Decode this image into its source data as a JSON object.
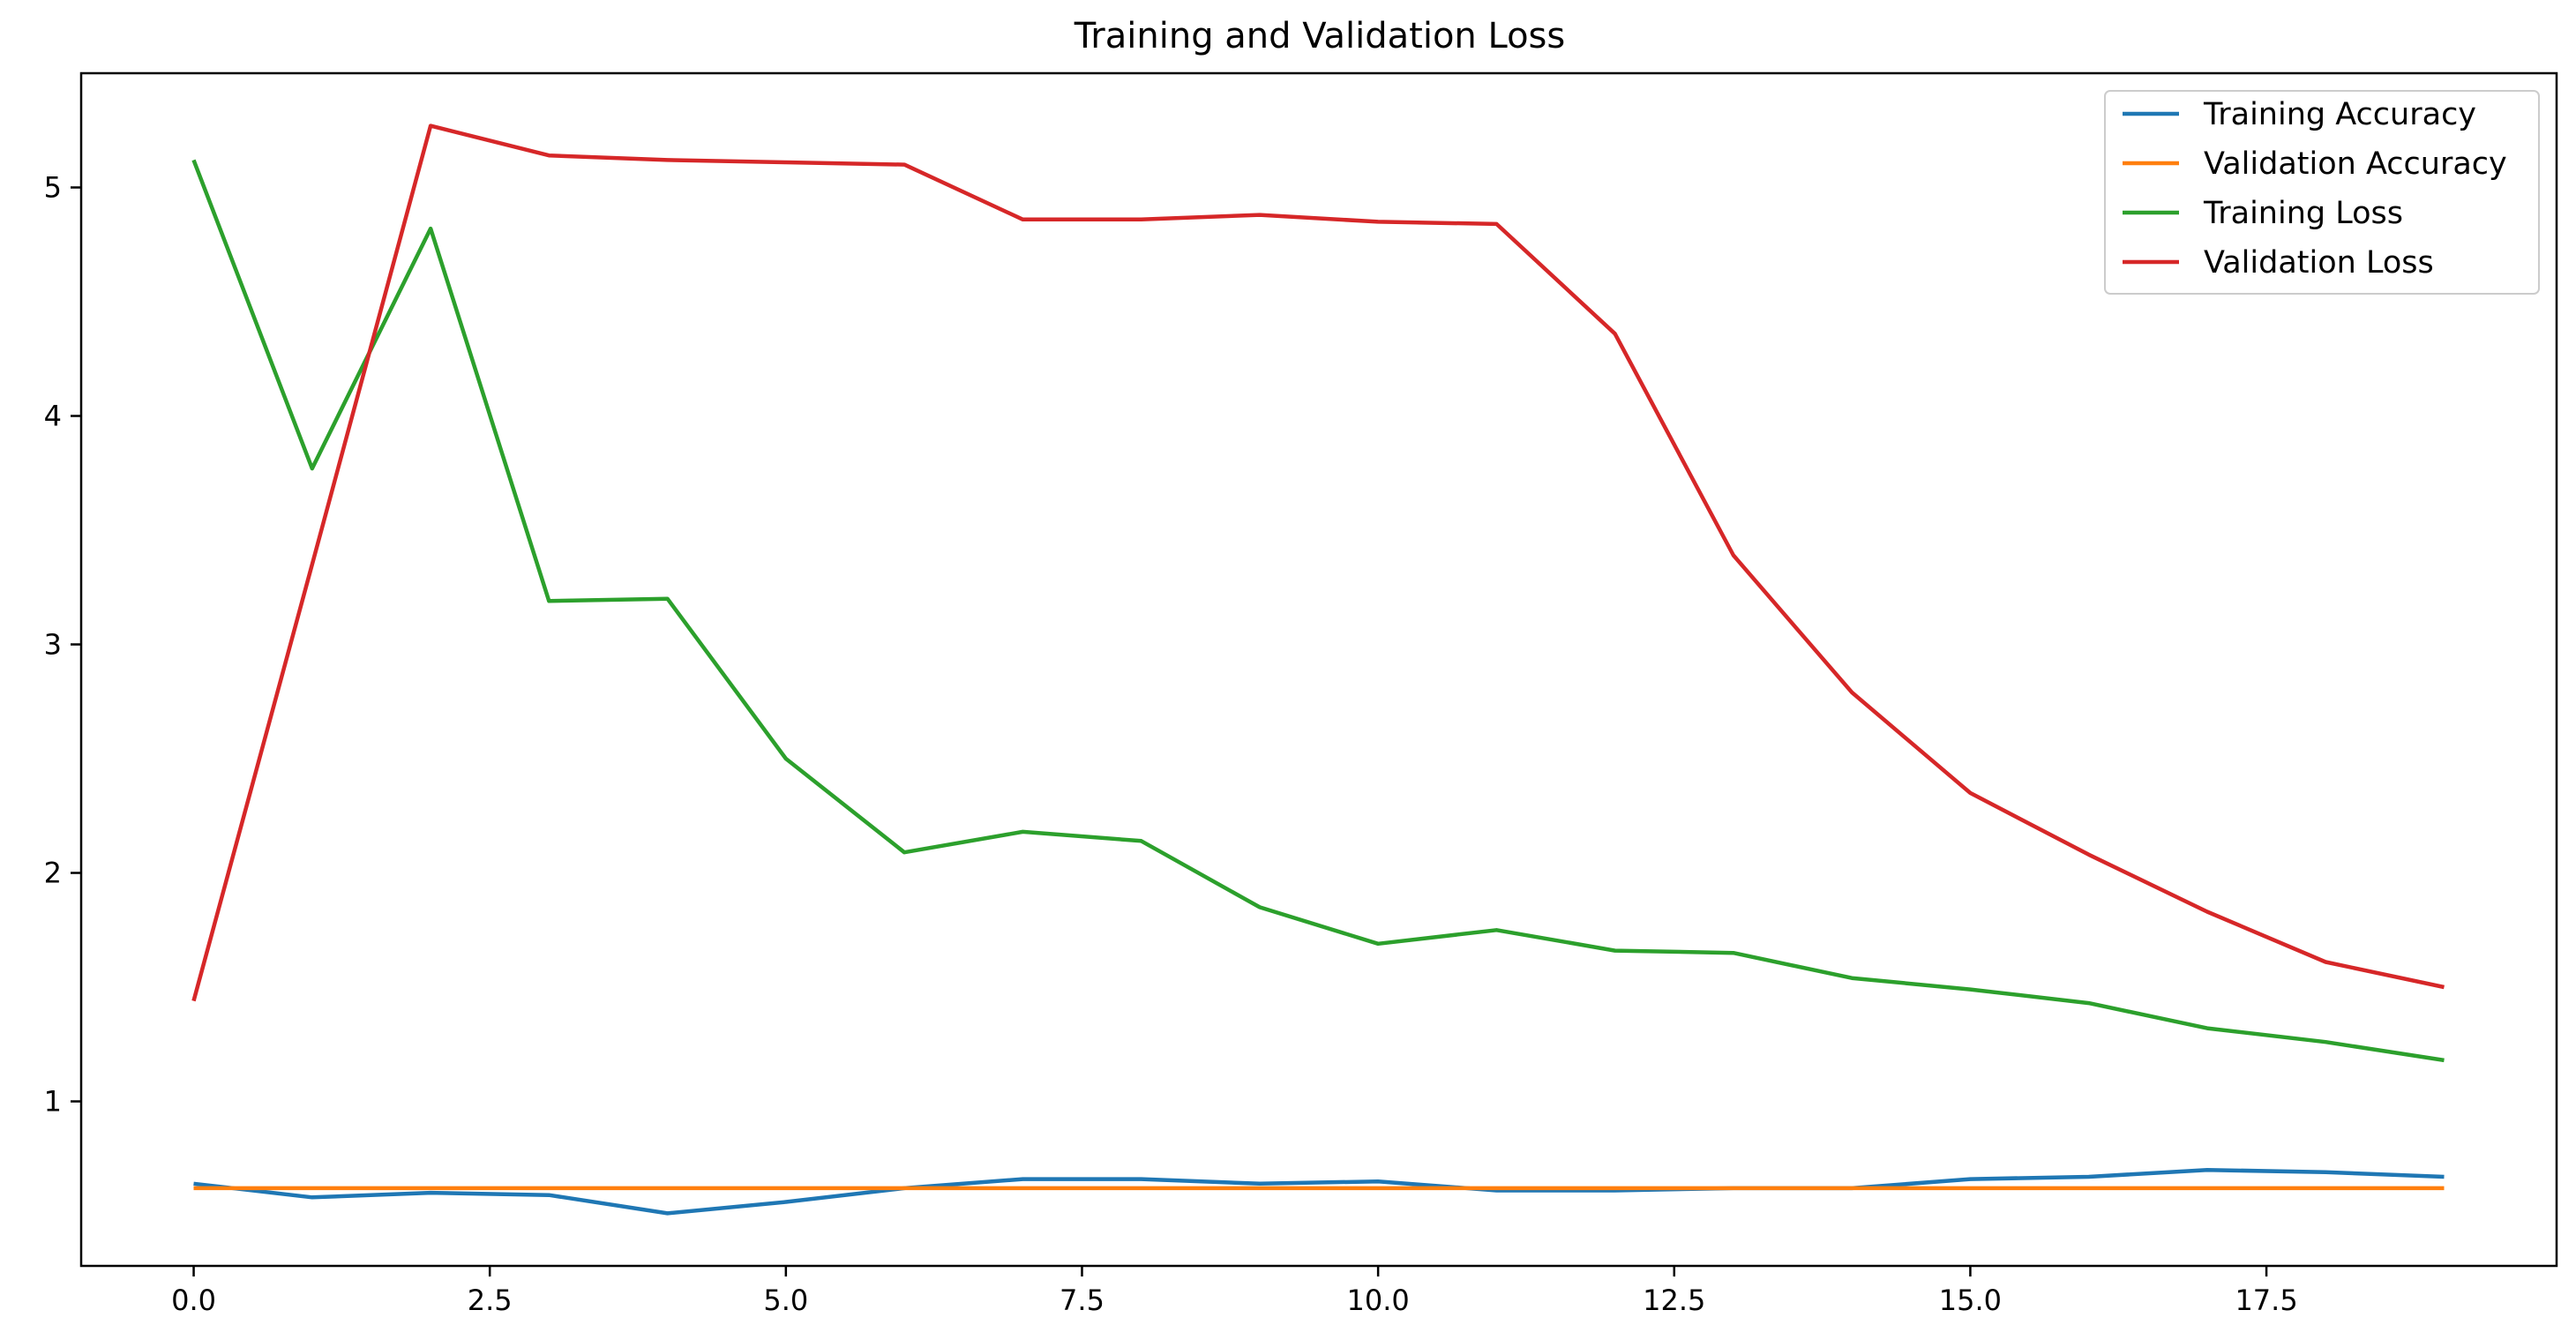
{
  "chart_data": {
    "type": "line",
    "title": "Training and Validation Loss",
    "xlabel": "",
    "ylabel": "",
    "xlim": [
      -0.95,
      19.95
    ],
    "ylim": [
      0.28,
      5.5
    ],
    "xticks": [
      0.0,
      2.5,
      5.0,
      7.5,
      10.0,
      12.5,
      15.0,
      17.5
    ],
    "xtick_labels": [
      "0.0",
      "2.5",
      "5.0",
      "7.5",
      "10.0",
      "12.5",
      "15.0",
      "17.5"
    ],
    "yticks": [
      1,
      2,
      3,
      4,
      5
    ],
    "ytick_labels": [
      "1",
      "2",
      "3",
      "4",
      "5"
    ],
    "grid": false,
    "legend_position": "top-right",
    "x": [
      0,
      1,
      2,
      3,
      4,
      5,
      6,
      7,
      8,
      9,
      10,
      11,
      12,
      13,
      14,
      15,
      16,
      17,
      18,
      19
    ],
    "series": [
      {
        "name": "Training Accuracy",
        "color": "#1f77b4",
        "values": [
          0.64,
          0.58,
          0.6,
          0.59,
          0.51,
          0.56,
          0.62,
          0.66,
          0.66,
          0.64,
          0.65,
          0.61,
          0.61,
          0.62,
          0.62,
          0.66,
          0.67,
          0.7,
          0.69,
          0.67
        ]
      },
      {
        "name": "Validation Accuracy",
        "color": "#ff7f0e",
        "values": [
          0.62,
          0.62,
          0.62,
          0.62,
          0.62,
          0.62,
          0.62,
          0.62,
          0.62,
          0.62,
          0.62,
          0.62,
          0.62,
          0.62,
          0.62,
          0.62,
          0.62,
          0.62,
          0.62,
          0.62
        ]
      },
      {
        "name": "Training Loss",
        "color": "#2ca02c",
        "values": [
          5.12,
          3.77,
          4.82,
          3.19,
          3.2,
          2.5,
          2.09,
          2.18,
          2.14,
          1.85,
          1.69,
          1.75,
          1.66,
          1.65,
          1.54,
          1.49,
          1.43,
          1.32,
          1.26,
          1.18
        ]
      },
      {
        "name": "Validation Loss",
        "color": "#d62728",
        "values": [
          1.44,
          3.35,
          5.27,
          5.14,
          5.12,
          5.11,
          5.1,
          4.86,
          4.86,
          4.88,
          4.85,
          4.84,
          4.36,
          3.39,
          2.79,
          2.35,
          2.08,
          1.83,
          1.61,
          1.5
        ]
      }
    ]
  }
}
